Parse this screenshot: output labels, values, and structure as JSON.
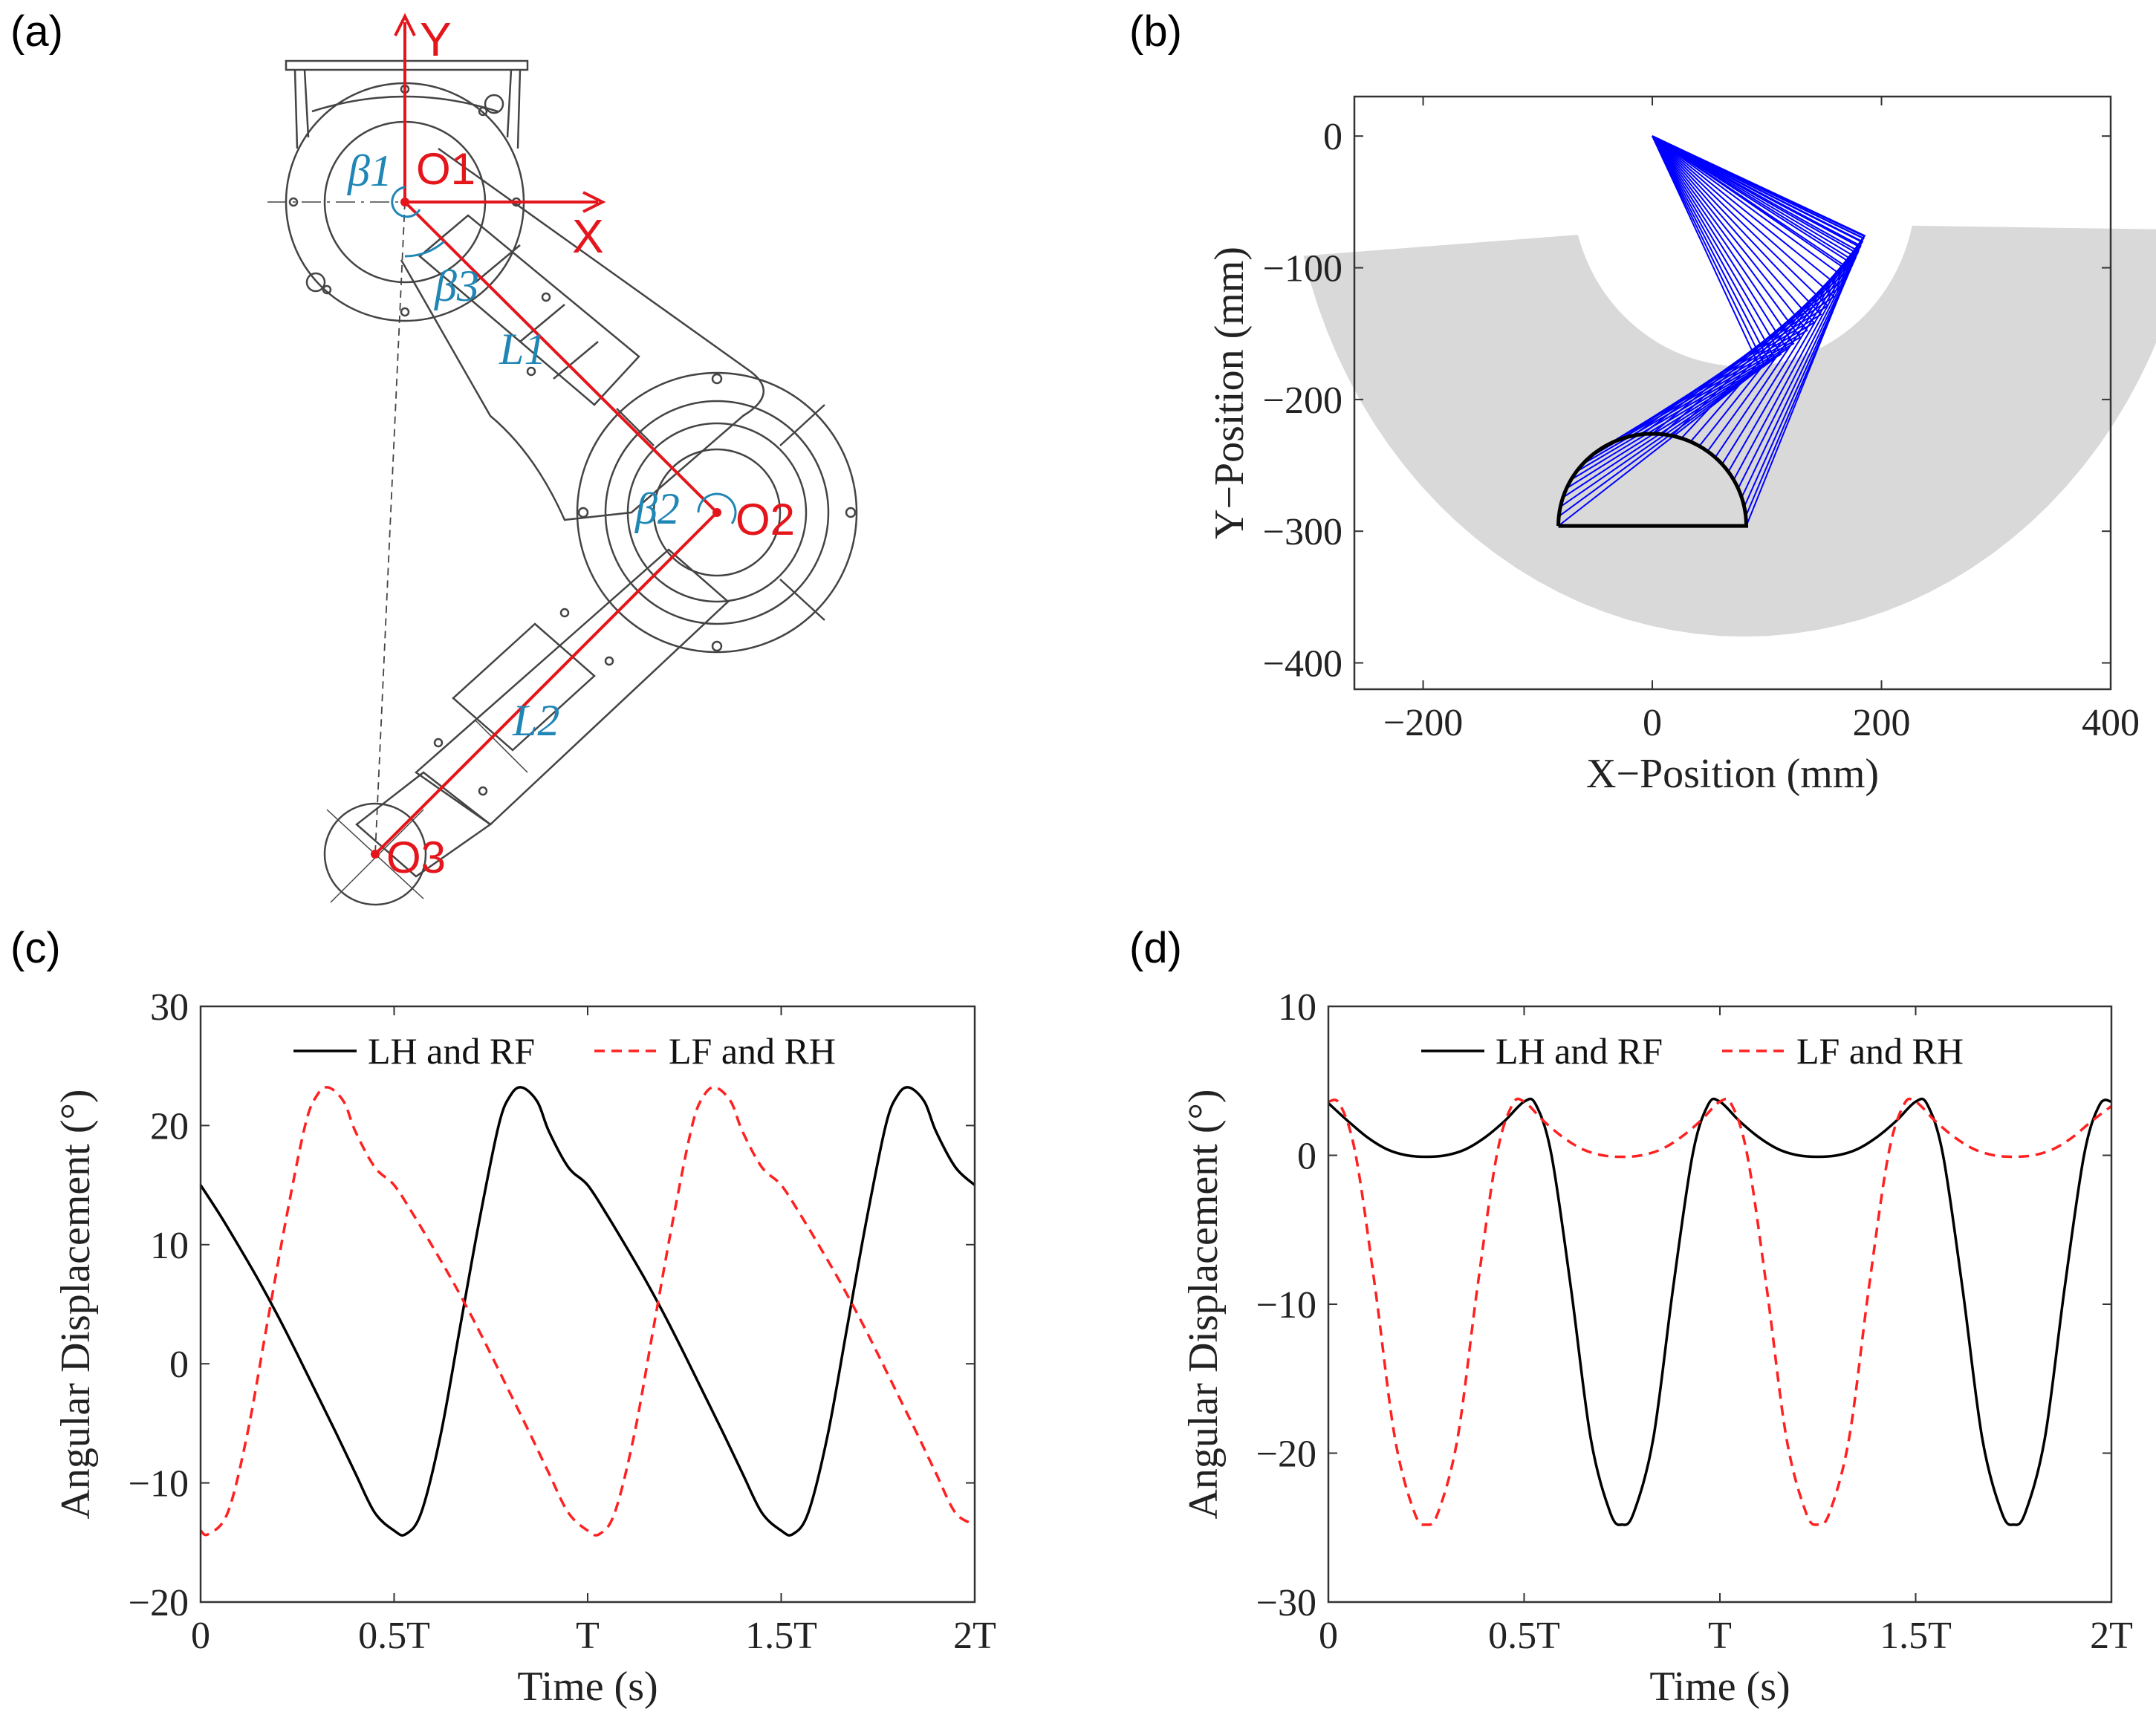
{
  "panels": {
    "a": {
      "letter": "(a)"
    },
    "b": {
      "letter": "(b)"
    },
    "c": {
      "letter": "(c)"
    },
    "d": {
      "letter": "(d)"
    }
  },
  "diagram": {
    "axis_x": "X",
    "axis_y": "Y",
    "o1": "O1",
    "o2": "O2",
    "o3": "O3",
    "beta1": "β1",
    "beta2": "β2",
    "beta3": "β3",
    "l1": "L1",
    "l2": "L2",
    "colors": {
      "frame": "#e4151b",
      "angle": "#1f86b5",
      "drawing": "#444444"
    }
  },
  "chart_data": [
    {
      "id": "b",
      "type": "line",
      "title": "",
      "xlabel": "X−Position (mm)",
      "ylabel": "Y−Position (mm)",
      "xlim": [
        -260,
        400
      ],
      "ylim": [
        -420,
        30
      ],
      "xticks": [
        -200,
        0,
        200,
        400
      ],
      "xtick_labels": [
        "−200",
        "0",
        "200",
        "400"
      ],
      "yticks": [
        0,
        -100,
        -200,
        -300,
        -400
      ],
      "ytick_labels": [
        "0",
        "−100",
        "−200",
        "−300",
        "−400"
      ],
      "workspace_color": "#d9d9d9",
      "link_color": "#0000ff",
      "hip": [
        0,
        0
      ],
      "link_lengths": [
        200,
        213
      ],
      "foot_trajectory": {
        "color": "#000000",
        "x_range": [
          -82,
          82
        ],
        "y_base": -296,
        "height": 70
      }
    },
    {
      "id": "c",
      "type": "line",
      "title": "",
      "xlabel": "Time (s)",
      "ylabel": "Angular Displacement (°)",
      "xlim": [
        0,
        2
      ],
      "ylim": [
        -20,
        30
      ],
      "xticks": [
        0,
        0.5,
        1,
        1.5,
        2
      ],
      "xtick_labels": [
        "0",
        "0.5T",
        "T",
        "1.5T",
        "2T"
      ],
      "yticks": [
        30,
        20,
        10,
        0,
        -10,
        -20
      ],
      "ytick_labels": [
        "30",
        "20",
        "10",
        "0",
        "−10",
        "−20"
      ],
      "legend": [
        "LH and RF",
        "LF and RH"
      ],
      "series": [
        {
          "name": "LH and RF",
          "style": "solid",
          "color": "#000000",
          "x": [
            0,
            0.05,
            0.1,
            0.15,
            0.2,
            0.25,
            0.3,
            0.35,
            0.4,
            0.45,
            0.5,
            0.53,
            0.57,
            0.62,
            0.67,
            0.72,
            0.77,
            0.8,
            0.83,
            0.87,
            0.9,
            0.95,
            1,
            1.05,
            1.1,
            1.15,
            1.2,
            1.25,
            1.3,
            1.35,
            1.4,
            1.45,
            1.5,
            1.53,
            1.57,
            1.62,
            1.67,
            1.72,
            1.77,
            1.8,
            1.83,
            1.87,
            1.9,
            1.95,
            2
          ],
          "values": [
            15,
            12.5,
            9.8,
            7,
            4,
            0.8,
            -2.5,
            -5.8,
            -9.2,
            -12.5,
            -14,
            -14.3,
            -12.5,
            -6,
            3,
            12,
            20,
            22.5,
            23.2,
            22,
            19.5,
            16.5,
            15,
            12.5,
            9.8,
            7,
            4,
            0.8,
            -2.5,
            -5.8,
            -9.2,
            -12.5,
            -14,
            -14.3,
            -12.5,
            -6,
            3,
            12,
            20,
            22.5,
            23.2,
            22,
            19.5,
            16.5,
            15
          ]
        },
        {
          "name": "LF and RH",
          "style": "dashed",
          "color": "#ff2020",
          "x": [
            0,
            0.02,
            0.07,
            0.12,
            0.17,
            0.22,
            0.27,
            0.3,
            0.33,
            0.37,
            0.4,
            0.45,
            0.5,
            0.55,
            0.6,
            0.65,
            0.7,
            0.75,
            0.8,
            0.85,
            0.9,
            0.95,
            1,
            1.03,
            1.07,
            1.12,
            1.17,
            1.22,
            1.27,
            1.3,
            1.33,
            1.37,
            1.4,
            1.45,
            1.5,
            1.55,
            1.6,
            1.65,
            1.7,
            1.75,
            1.8,
            1.85,
            1.9,
            1.95,
            2
          ],
          "values": [
            -14,
            -14.3,
            -12.5,
            -6,
            3,
            12,
            20,
            22.5,
            23.2,
            22,
            19.5,
            16.5,
            15,
            12.5,
            9.8,
            7,
            4,
            0.8,
            -2.5,
            -5.8,
            -9.2,
            -12.5,
            -14,
            -14.3,
            -12.5,
            -6,
            3,
            12,
            20,
            22.5,
            23.2,
            22,
            19.5,
            16.5,
            15,
            12.5,
            9.8,
            7,
            4,
            0.8,
            -2.5,
            -5.8,
            -9.2,
            -12.5,
            -13.5
          ]
        }
      ]
    },
    {
      "id": "d",
      "type": "line",
      "title": "",
      "xlabel": "Time (s)",
      "ylabel": "Angular Displacement (°)",
      "xlim": [
        0,
        2
      ],
      "ylim": [
        -30,
        10
      ],
      "xticks": [
        0,
        0.5,
        1,
        1.5,
        2
      ],
      "xtick_labels": [
        "0",
        "0.5T",
        "T",
        "1.5T",
        "2T"
      ],
      "yticks": [
        10,
        0,
        -10,
        -20,
        -30
      ],
      "ytick_labels": [
        "10",
        "0",
        "−10",
        "−20",
        "−30"
      ],
      "legend": [
        "LH and RF",
        "LF and RH"
      ],
      "series": [
        {
          "name": "LH and RF",
          "style": "solid",
          "color": "#000000",
          "x": [
            0,
            0.05,
            0.1,
            0.15,
            0.2,
            0.25,
            0.3,
            0.35,
            0.4,
            0.45,
            0.5,
            0.53,
            0.57,
            0.62,
            0.67,
            0.72,
            0.75,
            0.78,
            0.83,
            0.88,
            0.93,
            0.97,
            1,
            1.05,
            1.1,
            1.15,
            1.2,
            1.25,
            1.3,
            1.35,
            1.4,
            1.45,
            1.5,
            1.53,
            1.57,
            1.62,
            1.67,
            1.72,
            1.75,
            1.78,
            1.83,
            1.88,
            1.93,
            1.97,
            2
          ],
          "values": [
            3.5,
            2.3,
            1.2,
            0.4,
            0,
            -0.1,
            0,
            0.4,
            1.2,
            2.3,
            3.6,
            3.4,
            0,
            -9,
            -19,
            -24,
            -24.8,
            -24,
            -19,
            -9,
            0,
            3.4,
            3.6,
            2.3,
            1.2,
            0.4,
            0,
            -0.1,
            0,
            0.4,
            1.2,
            2.3,
            3.6,
            3.4,
            0,
            -9,
            -19,
            -24,
            -24.8,
            -24,
            -19,
            -9,
            0,
            3.4,
            3.6
          ]
        },
        {
          "name": "LF and RH",
          "style": "dashed",
          "color": "#ff2020",
          "x": [
            0,
            0.03,
            0.07,
            0.12,
            0.17,
            0.22,
            0.25,
            0.28,
            0.33,
            0.38,
            0.43,
            0.47,
            0.5,
            0.55,
            0.6,
            0.65,
            0.7,
            0.75,
            0.8,
            0.85,
            0.9,
            0.95,
            1,
            1.03,
            1.07,
            1.12,
            1.17,
            1.22,
            1.25,
            1.28,
            1.33,
            1.38,
            1.43,
            1.47,
            1.5,
            1.55,
            1.6,
            1.65,
            1.7,
            1.75,
            1.8,
            1.85,
            1.9,
            1.95,
            2
          ],
          "values": [
            3.6,
            3.4,
            0,
            -9,
            -19,
            -24,
            -24.8,
            -24,
            -19,
            -9,
            0,
            3.4,
            3.6,
            2.3,
            1.2,
            0.4,
            0,
            -0.1,
            0,
            0.4,
            1.2,
            2.3,
            3.6,
            3.4,
            0,
            -9,
            -19,
            -24,
            -24.8,
            -24,
            -19,
            -9,
            0,
            3.4,
            3.6,
            2.3,
            1.2,
            0.4,
            0,
            -0.1,
            0,
            0.4,
            1.2,
            2.3,
            3.3
          ]
        }
      ]
    }
  ]
}
